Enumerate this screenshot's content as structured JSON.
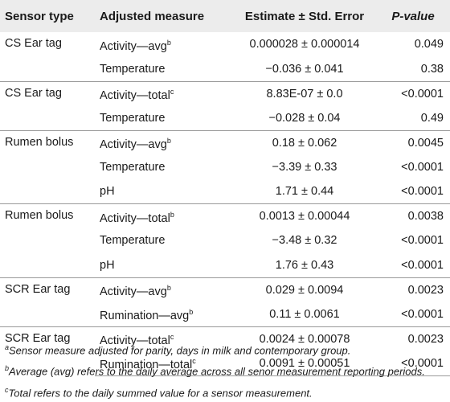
{
  "header": {
    "sensor_type": "Sensor type",
    "adjusted_measure": "Adjusted measure",
    "estimate": "Estimate ± Std. Error",
    "pvalue": "P-value"
  },
  "rows": [
    {
      "sensor": "CS Ear tag",
      "measure": "Activity—avg",
      "sup": "b",
      "estimate": "0.000028 ± 0.000014",
      "pvalue": "0.049"
    },
    {
      "sensor": "",
      "measure": "Temperature",
      "sup": "",
      "estimate": "−0.036 ± 0.041",
      "pvalue": "0.38"
    },
    {
      "sensor": "CS Ear tag",
      "measure": "Activity—total",
      "sup": "c",
      "estimate": "8.83E-07 ± 0.0",
      "pvalue": "<0.0001"
    },
    {
      "sensor": "",
      "measure": "Temperature",
      "sup": "",
      "estimate": "−0.028 ± 0.04",
      "pvalue": "0.49"
    },
    {
      "sensor": "Rumen bolus",
      "measure": "Activity—avg",
      "sup": "b",
      "estimate": "0.18 ± 0.062",
      "pvalue": "0.0045"
    },
    {
      "sensor": "",
      "measure": "Temperature",
      "sup": "",
      "estimate": "−3.39 ± 0.33",
      "pvalue": "<0.0001"
    },
    {
      "sensor": "",
      "measure": "pH",
      "sup": "",
      "estimate": "1.71 ± 0.44",
      "pvalue": "<0.0001"
    },
    {
      "sensor": "Rumen bolus",
      "measure": "Activity—total",
      "sup": "b",
      "estimate": "0.0013 ± 0.00044",
      "pvalue": "0.0038"
    },
    {
      "sensor": "",
      "measure": "Temperature",
      "sup": "",
      "estimate": "−3.48 ± 0.32",
      "pvalue": "<0.0001"
    },
    {
      "sensor": "",
      "measure": "pH",
      "sup": "",
      "estimate": "1.76 ± 0.43",
      "pvalue": "<0.0001"
    },
    {
      "sensor": "SCR Ear tag",
      "measure": "Activity—avg",
      "sup": "b",
      "estimate": "0.029 ± 0.0094",
      "pvalue": "0.0023"
    },
    {
      "sensor": "",
      "measure": "Rumination—avg",
      "sup": "b",
      "estimate": "0.11 ± 0.0061",
      "pvalue": "<0.0001"
    },
    {
      "sensor": "SCR Ear tag",
      "measure": "Activity—total",
      "sup": "c",
      "estimate": "0.0024 ± 0.00078",
      "pvalue": "0.0023"
    },
    {
      "sensor": "",
      "measure": "Rumination—total",
      "sup": "c",
      "estimate": "0.0091 ± 0.00051",
      "pvalue": "<0.0001"
    }
  ],
  "footnotes": [
    {
      "mark": "a",
      "text": "Sensor measure adjusted for parity, days in milk and contemporary group."
    },
    {
      "mark": "b",
      "text": "Average (avg) refers to the daily average across all senor measurement reporting periods."
    },
    {
      "mark": "c",
      "text": "Total refers to the daily summed value for a sensor measurement."
    }
  ]
}
